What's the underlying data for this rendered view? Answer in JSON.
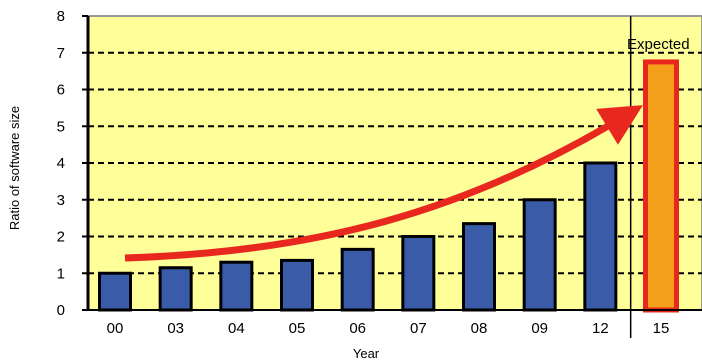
{
  "chart_data": {
    "type": "bar",
    "categories": [
      "00",
      "03",
      "04",
      "05",
      "06",
      "07",
      "08",
      "09",
      "12",
      "15"
    ],
    "values": [
      1.0,
      1.15,
      1.3,
      1.35,
      1.65,
      2.0,
      2.35,
      3.0,
      4.0,
      6.75
    ],
    "expected_categories": [
      "15"
    ],
    "xlabel": "Year",
    "ylabel": "Ratio of software size",
    "ylim": [
      0,
      8
    ],
    "yticks": [
      0,
      1,
      2,
      3,
      4,
      5,
      6,
      7,
      8
    ],
    "grid": true,
    "annotation": "Expected",
    "colors": {
      "plot_background": "#FFFF99",
      "bar": "#3A5BA8",
      "expected_bar": "#F5A01A",
      "expected_outline": "#E8281E",
      "trend_arrow": "#E8281E"
    }
  }
}
